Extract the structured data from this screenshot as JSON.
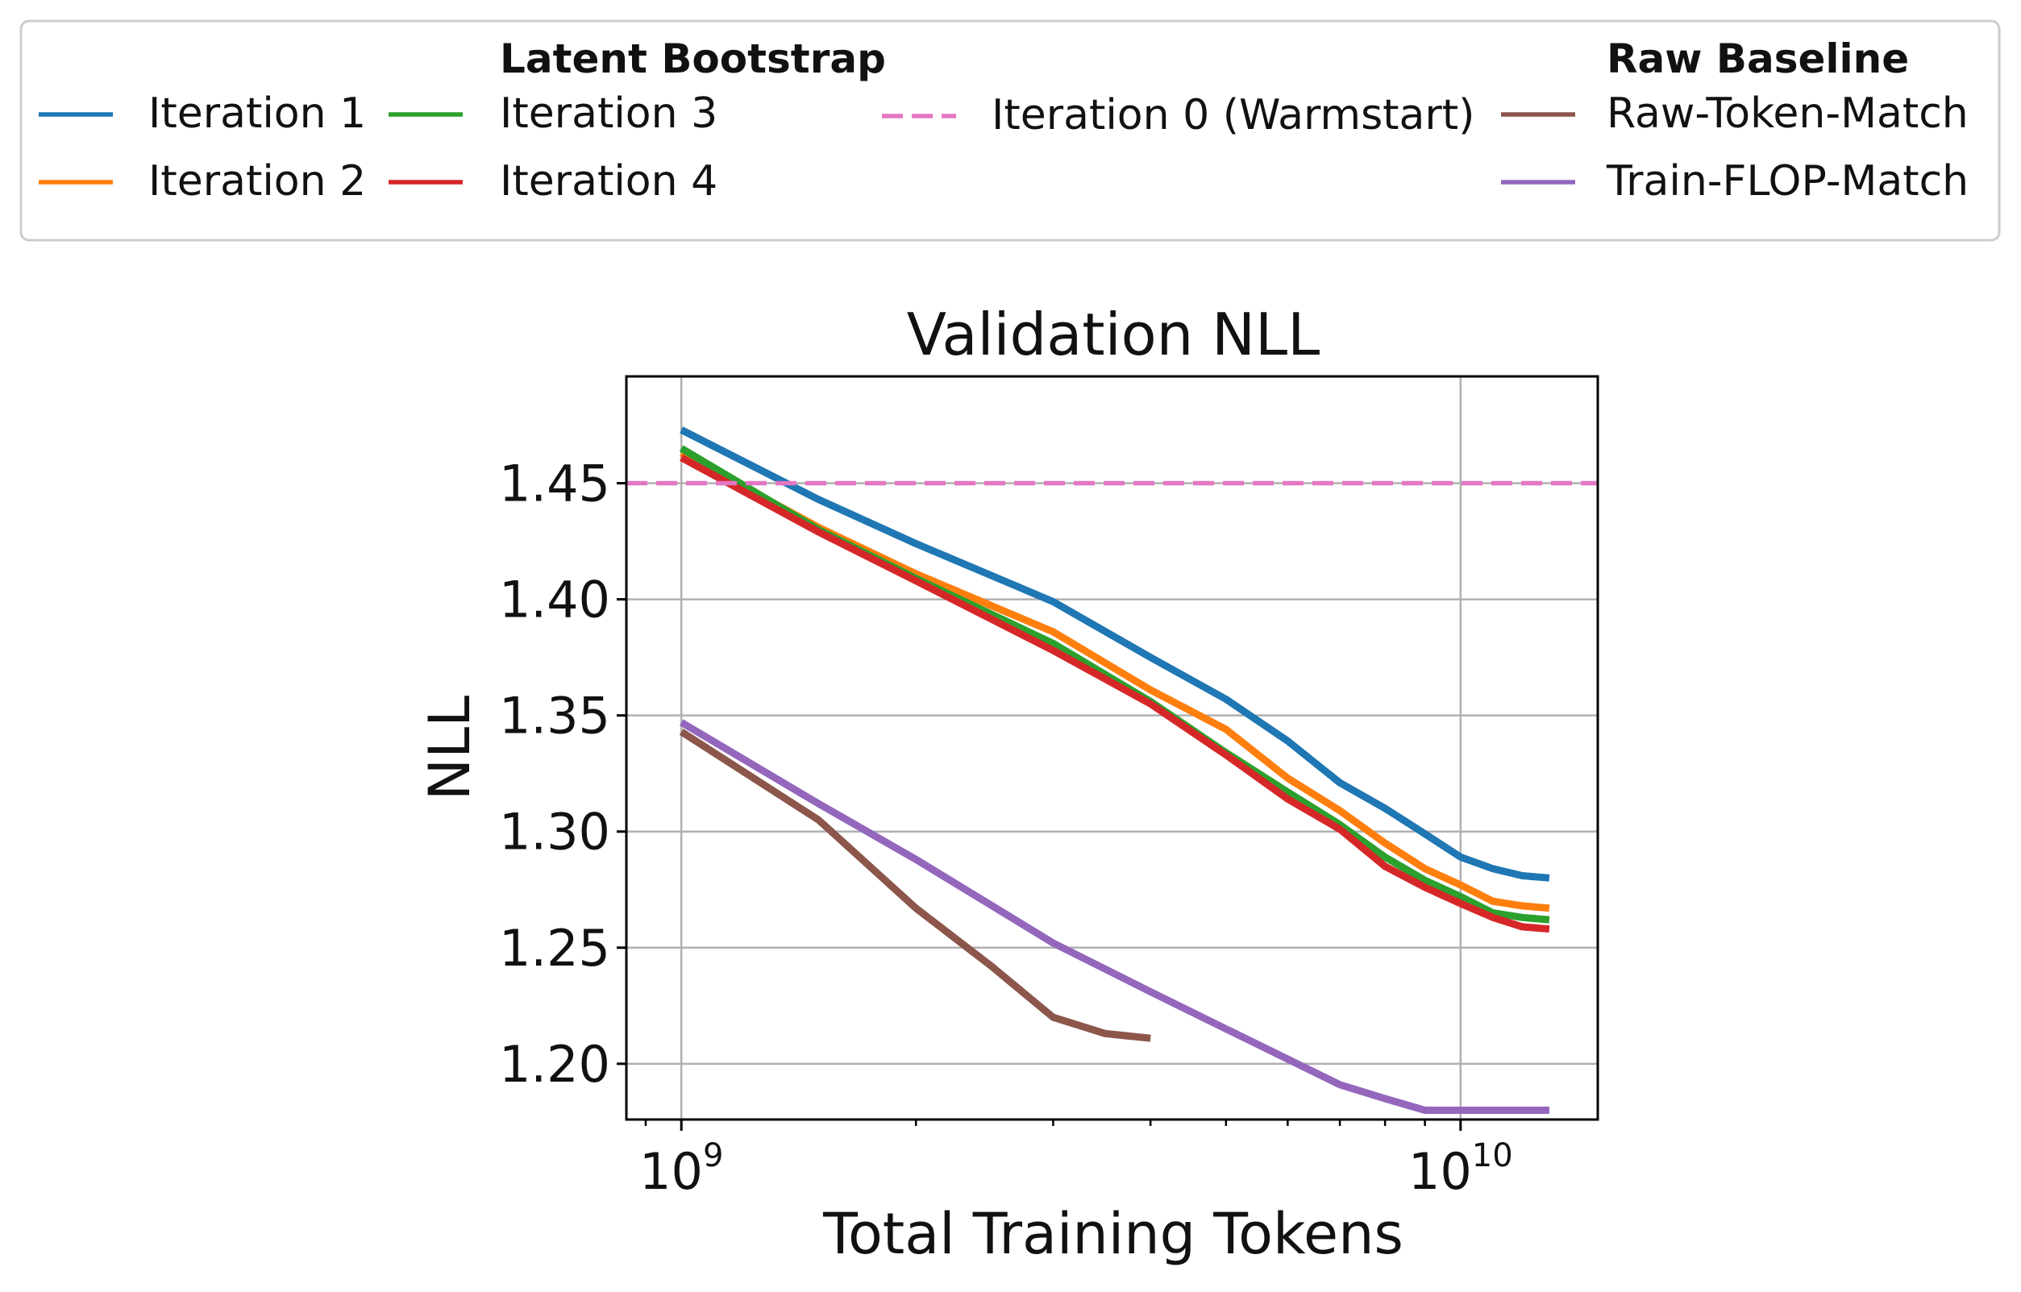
{
  "chart_data": {
    "type": "line",
    "title": "Validation NLL",
    "xlabel": "Total Training Tokens",
    "ylabel": "NLL",
    "x_scale": "log",
    "xlim": [
      850000000,
      15000000000
    ],
    "ylim": [
      1.176,
      1.496
    ],
    "x_ticks": [
      {
        "value": 1000000000,
        "base": "10",
        "exp": "9"
      },
      {
        "value": 10000000000,
        "base": "10",
        "exp": "10"
      }
    ],
    "y_ticks": [
      {
        "value": 1.2,
        "label": "1.20"
      },
      {
        "value": 1.25,
        "label": "1.25"
      },
      {
        "value": 1.3,
        "label": "1.30"
      },
      {
        "value": 1.35,
        "label": "1.35"
      },
      {
        "value": 1.4,
        "label": "1.40"
      },
      {
        "value": 1.45,
        "label": "1.45"
      }
    ],
    "grid": true,
    "legend_position": "top",
    "legend": {
      "groups": [
        {
          "title": "Latent Bootstrap",
          "series": [
            "Iteration 1",
            "Iteration 2",
            "Iteration 3",
            "Iteration 4"
          ]
        },
        {
          "title": "",
          "series": [
            "Iteration 0 (Warmstart)"
          ]
        },
        {
          "title": "Raw Baseline",
          "series": [
            "Raw-Token-Match",
            "Train-FLOP-Match"
          ]
        }
      ]
    },
    "series": [
      {
        "name": "Iteration 1",
        "color": "#1f77b4",
        "style": "solid",
        "x": [
          1000000000,
          1500000000,
          2000000000,
          3000000000,
          4000000000,
          5000000000,
          6000000000,
          7000000000,
          8000000000,
          9000000000,
          10000000000,
          11000000000,
          12000000000,
          13000000000
        ],
        "y": [
          1.473,
          1.443,
          1.424,
          1.399,
          1.375,
          1.357,
          1.339,
          1.321,
          1.31,
          1.299,
          1.289,
          1.284,
          1.281,
          1.28
        ]
      },
      {
        "name": "Iteration 2",
        "color": "#ff7f0e",
        "style": "solid",
        "x": [
          1000000000,
          1500000000,
          2000000000,
          3000000000,
          4000000000,
          5000000000,
          6000000000,
          7000000000,
          8000000000,
          9000000000,
          10000000000,
          11000000000,
          12000000000,
          13000000000
        ],
        "y": [
          1.463,
          1.431,
          1.411,
          1.386,
          1.361,
          1.344,
          1.323,
          1.309,
          1.295,
          1.284,
          1.277,
          1.27,
          1.268,
          1.267
        ]
      },
      {
        "name": "Iteration 3",
        "color": "#2ca02c",
        "style": "solid",
        "x": [
          1000000000,
          1500000000,
          2000000000,
          3000000000,
          4000000000,
          5000000000,
          6000000000,
          7000000000,
          8000000000,
          9000000000,
          10000000000,
          11000000000,
          12000000000,
          13000000000
        ],
        "y": [
          1.465,
          1.43,
          1.409,
          1.381,
          1.356,
          1.334,
          1.317,
          1.303,
          1.289,
          1.279,
          1.272,
          1.265,
          1.263,
          1.262
        ]
      },
      {
        "name": "Iteration 4",
        "color": "#d62728",
        "style": "solid",
        "x": [
          1000000000,
          1500000000,
          2000000000,
          3000000000,
          4000000000,
          5000000000,
          6000000000,
          7000000000,
          8000000000,
          9000000000,
          10000000000,
          11000000000,
          12000000000,
          13000000000
        ],
        "y": [
          1.461,
          1.429,
          1.408,
          1.378,
          1.355,
          1.333,
          1.314,
          1.301,
          1.285,
          1.276,
          1.269,
          1.263,
          1.259,
          1.258
        ]
      },
      {
        "name": "Iteration 0 (Warmstart)",
        "color": "#e377c2",
        "style": "dashed",
        "x": [
          850000000,
          15000000000
        ],
        "y": [
          1.45,
          1.45
        ]
      },
      {
        "name": "Raw-Token-Match",
        "color": "#8c564b",
        "style": "solid",
        "x": [
          1000000000,
          1500000000,
          2000000000,
          2500000000,
          3000000000,
          3500000000,
          4000000000
        ],
        "y": [
          1.343,
          1.305,
          1.267,
          1.242,
          1.22,
          1.213,
          1.211
        ]
      },
      {
        "name": "Train-FLOP-Match",
        "color": "#9467bd",
        "style": "solid",
        "x": [
          1000000000,
          1500000000,
          2000000000,
          3000000000,
          4000000000,
          5000000000,
          6000000000,
          7000000000,
          8000000000,
          9000000000,
          10000000000,
          11000000000,
          12000000000,
          13000000000
        ],
        "y": [
          1.347,
          1.312,
          1.288,
          1.252,
          1.231,
          1.215,
          1.202,
          1.191,
          1.185,
          1.18,
          1.18,
          1.18,
          1.18,
          1.18
        ]
      }
    ]
  }
}
